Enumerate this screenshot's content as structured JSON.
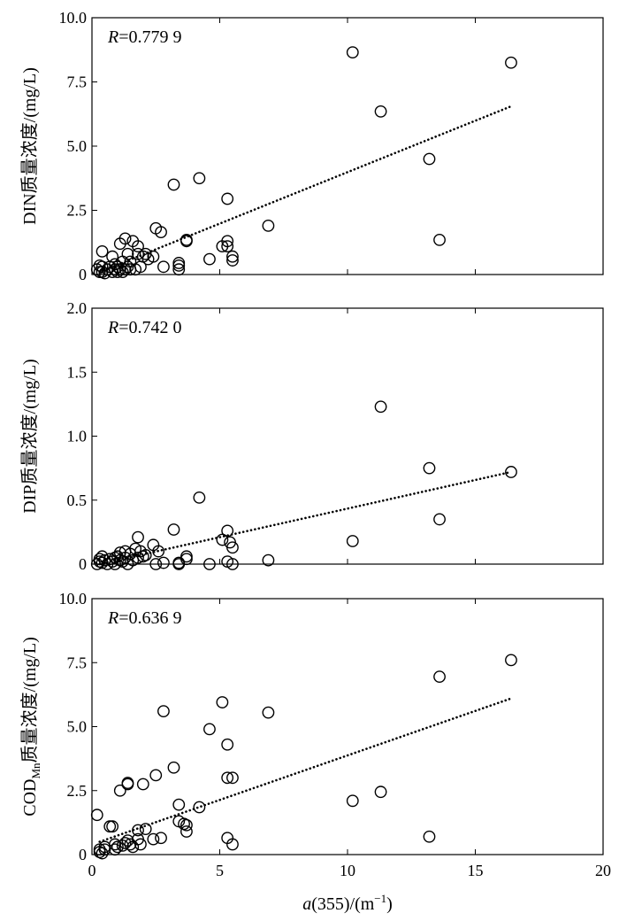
{
  "chart_data": [
    {
      "type": "scatter",
      "title": "",
      "annotation": {
        "var": "R",
        "value": "=0.779 9"
      },
      "ylabel": "DIN质量浓度/(mg/L)",
      "xlabel": "",
      "xlim": [
        0,
        20
      ],
      "ylim": [
        0,
        10
      ],
      "xticks": [
        "0",
        "5",
        "10",
        "15",
        "20"
      ],
      "xtick_labels_shown": false,
      "yticks": [
        "0",
        "2.5",
        "5.0",
        "7.5",
        "10.0"
      ],
      "trendline": {
        "style": "dotted",
        "x": [
          0.3,
          16.4
        ],
        "y": [
          0.1,
          6.55
        ]
      },
      "x": [
        0.2,
        0.3,
        0.3,
        0.4,
        0.4,
        0.4,
        0.5,
        0.6,
        0.7,
        0.8,
        0.8,
        0.9,
        0.9,
        1.0,
        1.0,
        1.1,
        1.1,
        1.2,
        1.2,
        1.3,
        1.3,
        1.4,
        1.4,
        1.5,
        1.5,
        1.6,
        1.7,
        1.8,
        1.8,
        1.9,
        2.0,
        2.1,
        2.2,
        2.4,
        2.5,
        2.7,
        2.8,
        3.2,
        3.4,
        3.4,
        3.4,
        3.7,
        3.7,
        4.2,
        4.6,
        5.1,
        5.3,
        5.3,
        5.3,
        5.5,
        5.5,
        6.9,
        10.2,
        11.3,
        13.2,
        13.6,
        16.4
      ],
      "y": [
        0.2,
        0.35,
        0.1,
        0.1,
        0.3,
        0.9,
        0.05,
        0.2,
        0.3,
        0.1,
        0.7,
        0.2,
        0.4,
        0.1,
        0.3,
        0.2,
        1.2,
        0.1,
        0.5,
        0.2,
        1.4,
        0.3,
        0.8,
        0.2,
        0.5,
        1.3,
        0.2,
        0.8,
        1.1,
        0.3,
        0.7,
        0.8,
        0.6,
        0.7,
        1.8,
        1.65,
        0.3,
        3.5,
        0.2,
        0.35,
        0.45,
        1.3,
        1.35,
        3.75,
        0.6,
        1.1,
        1.1,
        1.3,
        2.95,
        0.55,
        0.7,
        1.9,
        8.65,
        6.35,
        4.5,
        1.35,
        8.25
      ]
    },
    {
      "type": "scatter",
      "title": "",
      "annotation": {
        "var": "R",
        "value": "=0.742 0"
      },
      "ylabel": "DIP质量浓度/(mg/L)",
      "xlabel": "",
      "xlim": [
        0,
        20
      ],
      "ylim": [
        0,
        2
      ],
      "xticks": [
        "0",
        "5",
        "10",
        "15",
        "20"
      ],
      "xtick_labels_shown": false,
      "yticks": [
        "0",
        "0.5",
        "1.0",
        "1.5",
        "2.0"
      ],
      "trendline": {
        "style": "dotted",
        "x": [
          0.3,
          16.4
        ],
        "y": [
          0.0,
          0.72
        ]
      },
      "x": [
        0.2,
        0.3,
        0.3,
        0.4,
        0.4,
        0.5,
        0.6,
        0.7,
        0.8,
        0.9,
        0.9,
        1.0,
        1.1,
        1.1,
        1.2,
        1.3,
        1.3,
        1.4,
        1.5,
        1.6,
        1.7,
        1.8,
        1.8,
        1.9,
        2.0,
        2.1,
        2.4,
        2.5,
        2.6,
        2.8,
        3.2,
        3.4,
        3.4,
        3.7,
        3.7,
        4.2,
        4.6,
        5.1,
        5.3,
        5.3,
        5.4,
        5.5,
        5.5,
        6.9,
        10.2,
        11.3,
        13.2,
        13.6,
        16.4
      ],
      "y": [
        0.0,
        0.02,
        0.04,
        0.01,
        0.06,
        0.03,
        0.0,
        0.04,
        0.02,
        0.0,
        0.05,
        0.06,
        0.03,
        0.09,
        0.02,
        0.05,
        0.1,
        0.0,
        0.08,
        0.03,
        0.12,
        0.21,
        0.05,
        0.1,
        0.06,
        0.07,
        0.15,
        0.0,
        0.1,
        0.01,
        0.27,
        0.0,
        0.01,
        0.04,
        0.06,
        0.52,
        0.0,
        0.19,
        0.02,
        0.26,
        0.17,
        0.13,
        -0.02,
        0.03,
        0.18,
        1.23,
        0.75,
        0.35,
        0.72
      ]
    },
    {
      "type": "scatter",
      "title": "",
      "annotation": {
        "var": "R",
        "value": "=0.636 9"
      },
      "ylabel": "COD质量浓度/(mg/L)",
      "ylabel_parts": {
        "main": "COD",
        "sub": "Mn",
        "rest": "质量浓度/(mg/L)"
      },
      "xlabel": "a(355)/(m−1)",
      "xlabel_parts": {
        "var": "a",
        "mid": "(355)/(m",
        "sup": "−1",
        "end": ")"
      },
      "xlim": [
        0,
        20
      ],
      "ylim": [
        0,
        10
      ],
      "xticks": [
        "0",
        "5",
        "10",
        "15",
        "20"
      ],
      "xtick_labels_shown": true,
      "yticks": [
        "0",
        "2.5",
        "5.0",
        "7.5",
        "10.0"
      ],
      "trendline": {
        "style": "dotted",
        "x": [
          0.3,
          16.4
        ],
        "y": [
          0.5,
          6.1
        ]
      },
      "x": [
        0.2,
        0.3,
        0.3,
        0.4,
        0.5,
        0.5,
        0.7,
        0.8,
        0.9,
        0.9,
        1.0,
        1.1,
        1.2,
        1.3,
        1.4,
        1.4,
        1.4,
        1.5,
        1.6,
        1.8,
        1.8,
        1.9,
        2.0,
        2.1,
        2.4,
        2.5,
        2.7,
        2.8,
        3.2,
        3.4,
        3.4,
        3.6,
        3.7,
        3.7,
        4.2,
        4.6,
        5.1,
        5.3,
        5.3,
        5.3,
        5.5,
        5.5,
        6.9,
        10.2,
        11.3,
        13.2,
        13.6,
        16.4
      ],
      "y": [
        1.55,
        0.1,
        0.2,
        0.05,
        0.2,
        0.3,
        1.1,
        1.1,
        0.4,
        0.2,
        0.3,
        2.5,
        0.35,
        0.45,
        2.75,
        2.8,
        0.55,
        0.4,
        0.3,
        0.6,
        0.95,
        0.4,
        2.75,
        1.0,
        0.6,
        3.1,
        0.65,
        5.6,
        3.4,
        1.3,
        1.95,
        1.2,
        0.9,
        1.15,
        1.85,
        4.9,
        5.95,
        4.3,
        3.0,
        0.65,
        3.0,
        0.4,
        5.55,
        2.1,
        2.45,
        0.7,
        6.95,
        7.6
      ]
    }
  ]
}
